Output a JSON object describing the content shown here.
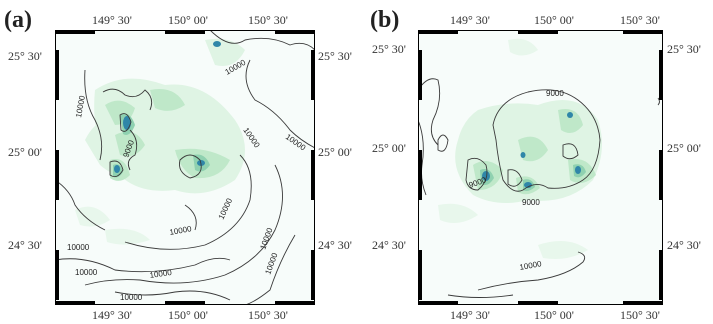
{
  "panels": [
    {
      "tag": "(a)",
      "lon_labels": [
        "149° 30'",
        "150° 00'",
        "150° 30'"
      ],
      "lat_labels": [
        "25° 30'",
        "25° 00'",
        "24° 30'"
      ],
      "contour_labels": [
        "10000",
        "10000",
        "10000",
        "9000",
        "10000",
        "10000",
        "10000",
        "10000",
        "10000",
        "10000",
        "10000",
        "10000",
        "10000"
      ]
    },
    {
      "tag": "(b)",
      "lon_labels": [
        "149° 30'",
        "150° 00'",
        "150° 30'"
      ],
      "lat_labels": [
        "25° 30'",
        "25° 00'",
        "24° 30'"
      ],
      "contour_labels": [
        "9000",
        "9000",
        "9000",
        "10000"
      ]
    }
  ],
  "colors": {
    "frame": "#000000",
    "contour": "#3a3a3a",
    "shade_light": "#dff4e4",
    "shade_mid": "#bfe8c9",
    "shade_strong": "#8fd1b0",
    "shade_core": "#2f86a8"
  }
}
